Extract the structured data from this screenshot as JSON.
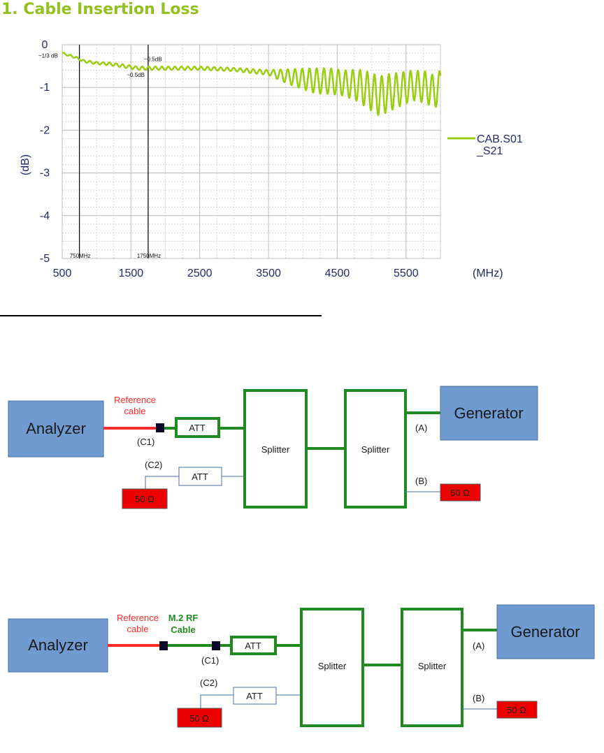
{
  "section": {
    "title": "1.  Cable Insertion Loss"
  },
  "chart_data": {
    "type": "line",
    "xlabel": "(MHz)",
    "ylabel": "(dB)",
    "xlim": [
      500,
      6000
    ],
    "ylim": [
      -5,
      0
    ],
    "x_ticks": [
      "500",
      "1500",
      "2500",
      "3500",
      "4500",
      "5500"
    ],
    "y_ticks": [
      "0",
      "-1",
      "-2",
      "-3",
      "-4",
      "-5"
    ],
    "grid": true,
    "legend": {
      "position": "right",
      "label": "CAB.S01\n_S21"
    },
    "series": [
      {
        "name": "CAB.S01_S21",
        "color": "#9acd10",
        "x": [
          500,
          600,
          700,
          800,
          1000,
          1200,
          1400,
          1600,
          1750,
          2000,
          2500,
          3000,
          3500,
          3800,
          4000,
          4200,
          4400,
          4600,
          4800,
          5000,
          5100,
          5200,
          5400,
          5600,
          5800,
          5900,
          6000
        ],
        "y": [
          -0.2,
          -0.25,
          -0.3,
          -0.38,
          -0.43,
          -0.45,
          -0.5,
          -0.55,
          -0.55,
          -0.55,
          -0.55,
          -0.58,
          -0.65,
          -0.75,
          -0.8,
          -0.85,
          -0.85,
          -0.9,
          -0.95,
          -1.1,
          -1.2,
          -1.15,
          -1.05,
          -0.95,
          -1.0,
          -1.1,
          -1.0
        ]
      }
    ],
    "ripple": [
      {
        "x": 500,
        "a": 0.02
      },
      {
        "x": 1500,
        "a": 0.04
      },
      {
        "x": 3000,
        "a": 0.04
      },
      {
        "x": 3500,
        "a": 0.06
      },
      {
        "x": 3800,
        "a": 0.18
      },
      {
        "x": 4200,
        "a": 0.3
      },
      {
        "x": 4600,
        "a": 0.3
      },
      {
        "x": 5000,
        "a": 0.45
      },
      {
        "x": 5200,
        "a": 0.45
      },
      {
        "x": 5600,
        "a": 0.35
      },
      {
        "x": 6000,
        "a": 0.4
      }
    ],
    "markers": [
      {
        "x": 750,
        "label": "750MHz"
      },
      {
        "x": 1750,
        "label": "1750MHz"
      }
    ],
    "annotations": [
      {
        "text": "~1/3 dB",
        "x": 500,
        "y": -0.3
      },
      {
        "text": "~0.5dB",
        "x": 1500,
        "y": -0.75
      },
      {
        "text": "~0.5dB",
        "x": 1750,
        "y": -0.38
      }
    ]
  },
  "diagram1": {
    "analyzer": "Analyzer",
    "generator": "Generator",
    "ref_cable_1": "Reference",
    "ref_cable_2": "cable",
    "c1": "(C1)",
    "c2": "(C2)",
    "att_top": "ATT",
    "att_bottom": "ATT",
    "splitter_left": "Splitter",
    "splitter_right": "Splitter",
    "port_a": "(A)",
    "port_b": "(B)",
    "load_left": "50 Ω",
    "load_right": "50 Ω"
  },
  "diagram2": {
    "analyzer": "Analyzer",
    "generator": "Generator",
    "ref_cable_1": "Reference",
    "ref_cable_2": "cable",
    "m2_cable_1": "M.2 RF",
    "m2_cable_2": "Cable",
    "c1": "(C1)",
    "c2": "(C2)",
    "att_top": "ATT",
    "att_bottom": "ATT",
    "splitter_left": "Splitter",
    "splitter_right": "Splitter",
    "port_a": "(A)",
    "port_b": "(B)",
    "load_left": "50 Ω",
    "load_right": "50 Ω"
  },
  "colors": {
    "heading": "#92c01c",
    "box_fill": "#6f9bd1",
    "box_stroke": "#4a6fa0",
    "green_line": "#1f8a1f",
    "red_line": "#ff2a2a",
    "load_fill": "#ee0000",
    "axis_text": "#1f2a6b"
  }
}
